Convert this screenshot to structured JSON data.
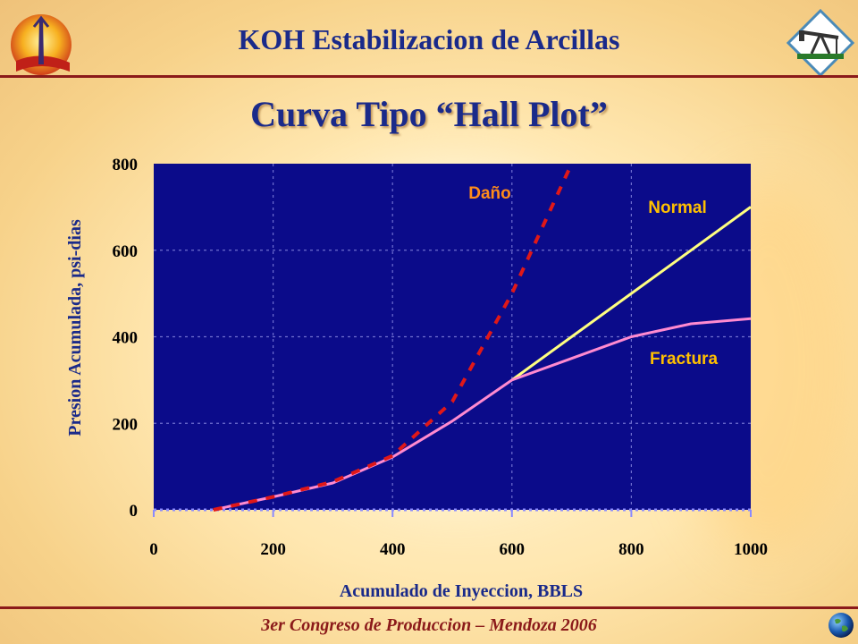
{
  "header": {
    "title": "KOH Estabilizacion de Arcillas"
  },
  "slide_title": "Curva Tipo “Hall Plot”",
  "footer": {
    "text": "3er Congreso de Produccion – Mendoza 2006"
  },
  "colors": {
    "plot_background": "#0b0b8a",
    "title": "#1a2a8a",
    "footer": "#8b1a1a",
    "dano": "#e01818",
    "normal": "#ffff80",
    "fractura": "#ff8ad0",
    "dano_label": "#ff8c1a",
    "normal_label": "#ffc000",
    "fractura_label": "#ffc000"
  },
  "chart_data": {
    "type": "line",
    "xlabel": "Acumulado de Inyeccion, BBLS",
    "ylabel": "Presion Acumulada, psi-dias",
    "xlim": [
      0,
      1000
    ],
    "ylim": [
      0,
      800
    ],
    "xticks": [
      "0",
      "200",
      "400",
      "600",
      "800",
      "1000"
    ],
    "yticks": [
      "0",
      "200",
      "400",
      "600",
      "800"
    ],
    "grid": true,
    "series": [
      {
        "name": "Daño",
        "style": "dashed",
        "x": [
          100,
          200,
          300,
          400,
          500,
          600,
          700
        ],
        "y": [
          0,
          30,
          65,
          125,
          250,
          500,
          800
        ]
      },
      {
        "name": "Normal",
        "style": "solid",
        "x": [
          600,
          700,
          800,
          900,
          1000
        ],
        "y": [
          300,
          400,
          500,
          600,
          700
        ]
      },
      {
        "name": "Fractura",
        "style": "solid",
        "x": [
          100,
          200,
          300,
          400,
          500,
          600,
          700,
          800,
          900,
          1000
        ],
        "y": [
          0,
          30,
          62,
          122,
          205,
          300,
          350,
          400,
          430,
          442
        ]
      }
    ]
  }
}
